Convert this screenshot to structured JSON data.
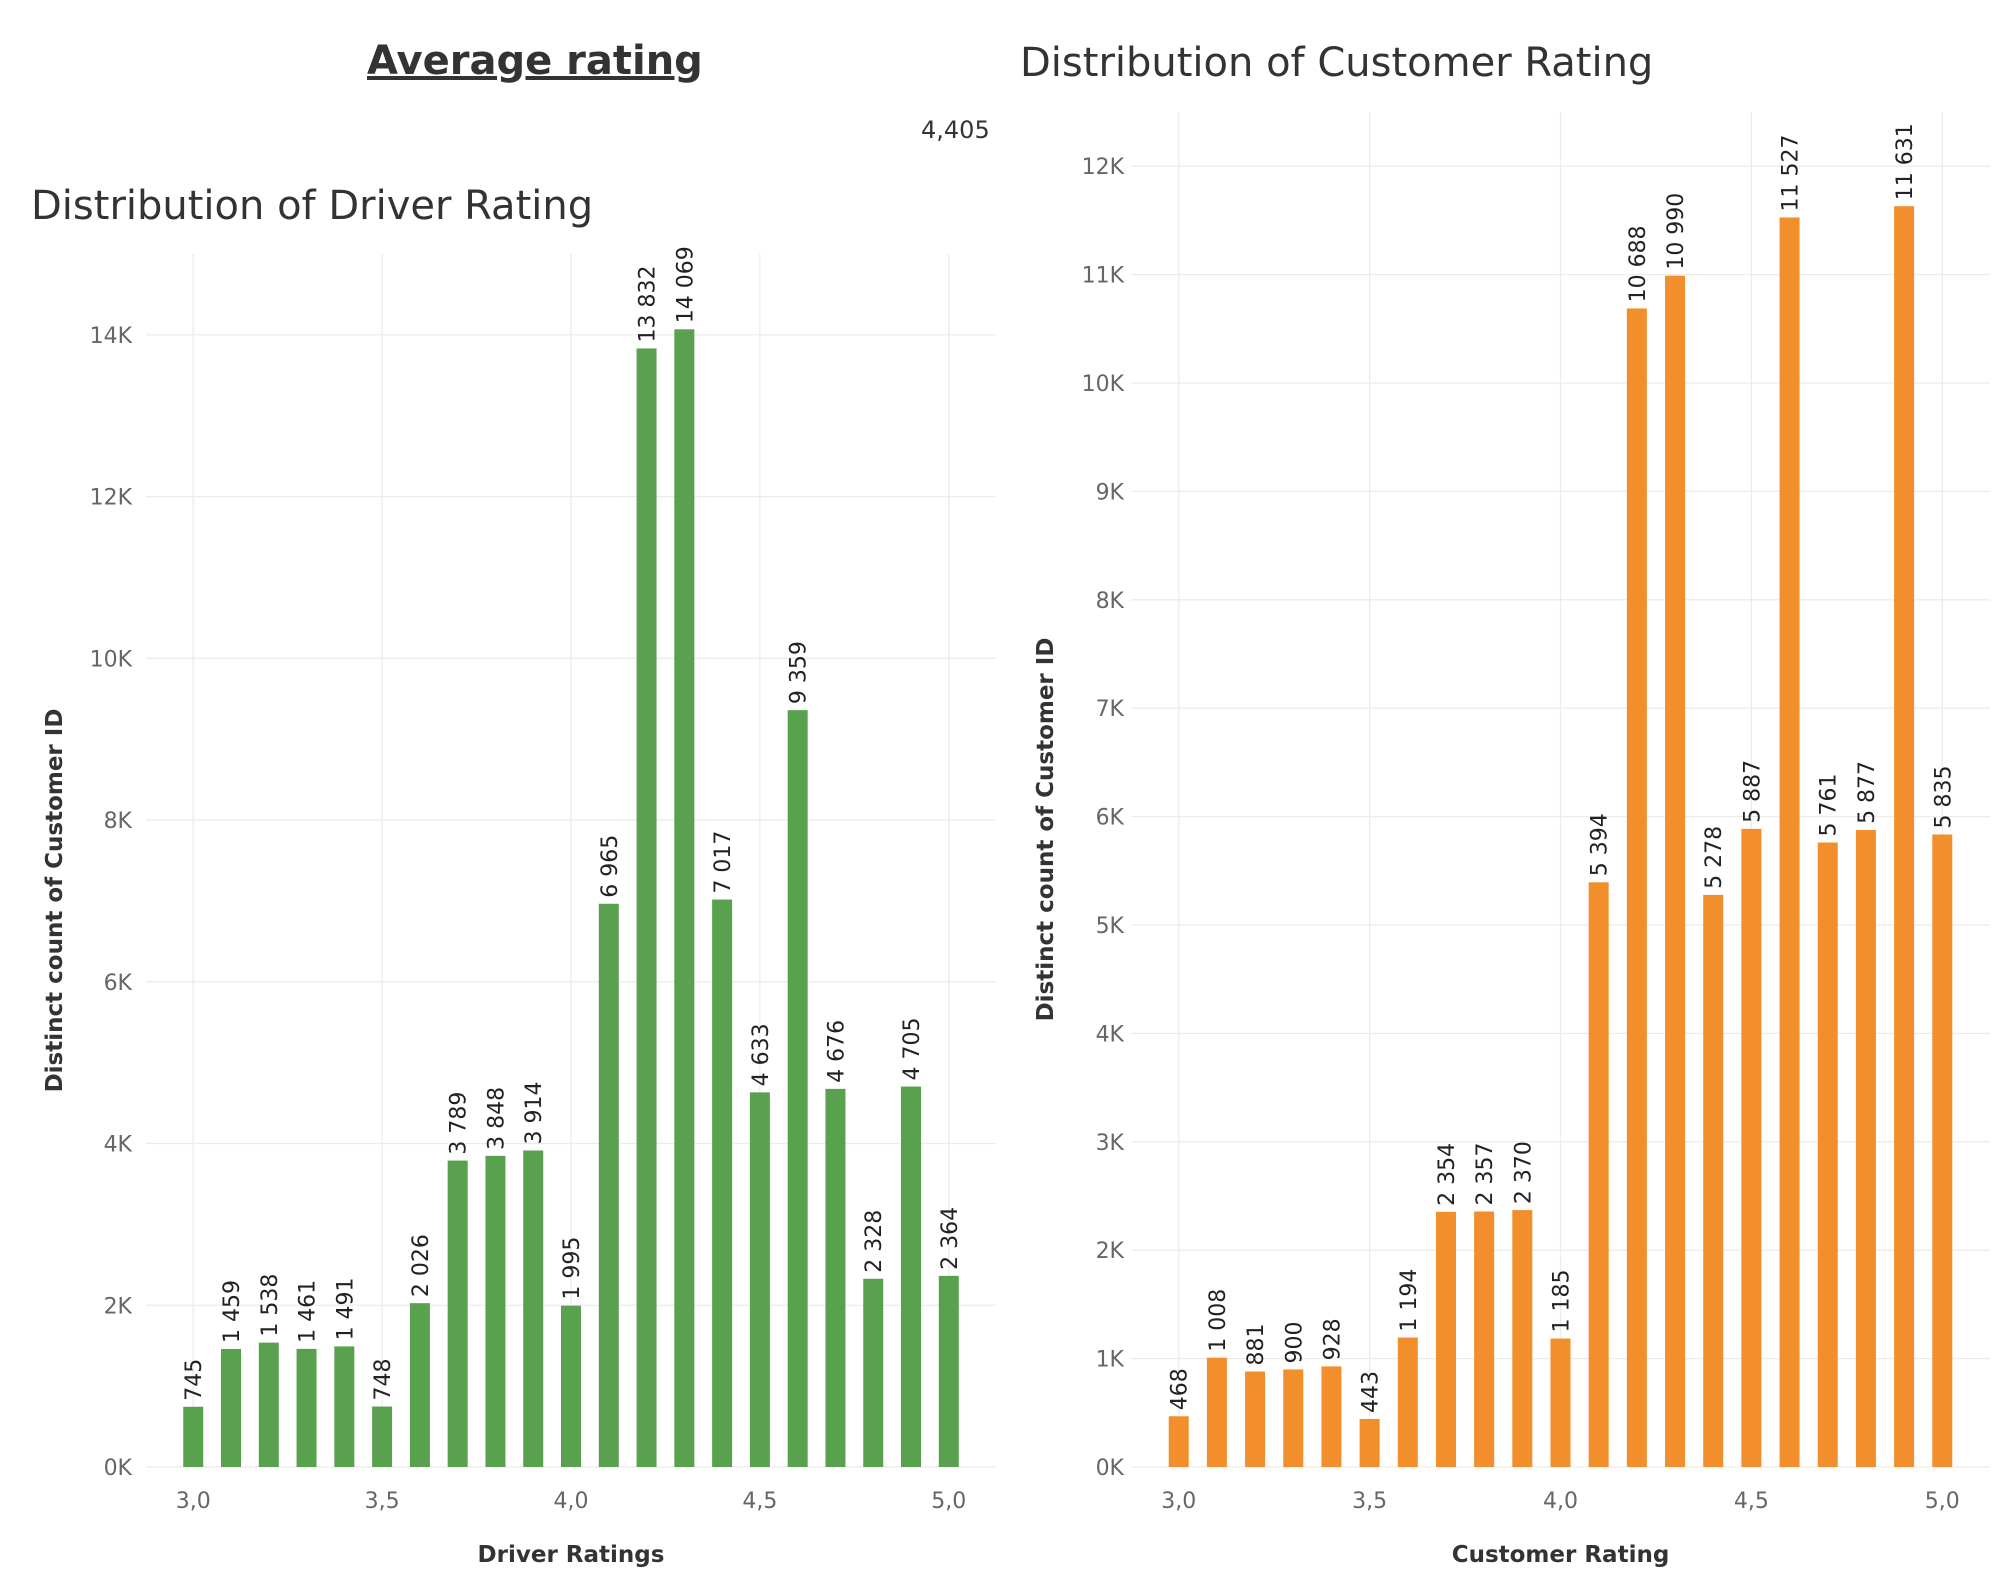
{
  "dashboard": {
    "title": "Average rating",
    "average_value": "4,405"
  },
  "chart_data": [
    {
      "type": "bar",
      "title": "Distribution of Driver Rating",
      "xlabel": "Driver Ratings",
      "ylabel": "Distinct count of Customer ID",
      "x": [
        3.0,
        3.1,
        3.2,
        3.3,
        3.4,
        3.5,
        3.6,
        3.7,
        3.8,
        3.9,
        4.0,
        4.1,
        4.2,
        4.3,
        4.4,
        4.5,
        4.6,
        4.7,
        4.8,
        4.9,
        5.0
      ],
      "values": [
        745,
        1459,
        1538,
        1461,
        1491,
        748,
        2026,
        3789,
        3848,
        3914,
        1995,
        6965,
        13832,
        14069,
        7017,
        4633,
        9359,
        4676,
        2328,
        4705,
        2364
      ],
      "value_labels": [
        "745",
        "1 459",
        "1 538",
        "1 461",
        "1 491",
        "748",
        "2 026",
        "3 789",
        "3 848",
        "3 914",
        "1 995",
        "6 965",
        "13 832",
        "14 069",
        "7 017",
        "4 633",
        "9 359",
        "4 676",
        "2 328",
        "4 705",
        "2 364"
      ],
      "xticks": [
        3.0,
        3.5,
        4.0,
        4.5,
        5.0
      ],
      "xtick_labels": [
        "3,0",
        "3,5",
        "4,0",
        "4,5",
        "5,0"
      ],
      "yticks": [
        0,
        2000,
        4000,
        6000,
        8000,
        10000,
        12000,
        14000
      ],
      "ytick_labels": [
        "0K",
        "2K",
        "4K",
        "6K",
        "8K",
        "10K",
        "12K",
        "14K"
      ],
      "xlim": [
        2.875,
        5.125
      ],
      "ylim": [
        0,
        15000
      ],
      "color": "#59a14f",
      "grid": true,
      "legend": "none"
    },
    {
      "type": "bar",
      "title": "Distribution of Customer Rating",
      "xlabel": "Customer Rating",
      "ylabel": "Distinct count of Customer ID",
      "x": [
        3.0,
        3.1,
        3.2,
        3.3,
        3.4,
        3.5,
        3.6,
        3.7,
        3.8,
        3.9,
        4.0,
        4.1,
        4.2,
        4.3,
        4.4,
        4.5,
        4.6,
        4.7,
        4.8,
        4.9,
        5.0
      ],
      "values": [
        468,
        1008,
        881,
        900,
        928,
        443,
        1194,
        2354,
        2357,
        2370,
        1185,
        5394,
        10688,
        10990,
        5278,
        5887,
        11527,
        5761,
        5877,
        11631,
        5835
      ],
      "value_labels": [
        "468",
        "1 008",
        "881",
        "900",
        "928",
        "443",
        "1 194",
        "2 354",
        "2 357",
        "2 370",
        "1 185",
        "5 394",
        "10 688",
        "10 990",
        "5 278",
        "5 887",
        "11 527",
        "5 761",
        "5 877",
        "11 631",
        "5 835"
      ],
      "xticks": [
        3.0,
        3.5,
        4.0,
        4.5,
        5.0
      ],
      "xtick_labels": [
        "3,0",
        "3,5",
        "4,0",
        "4,5",
        "5,0"
      ],
      "yticks": [
        0,
        1000,
        2000,
        3000,
        4000,
        5000,
        6000,
        7000,
        8000,
        9000,
        10000,
        11000,
        12000
      ],
      "ytick_labels": [
        "0K",
        "1K",
        "2K",
        "3K",
        "4K",
        "5K",
        "6K",
        "7K",
        "8K",
        "9K",
        "10K",
        "11K",
        "12K"
      ],
      "xlim": [
        2.875,
        5.125
      ],
      "ylim": [
        0,
        12500
      ],
      "color": "#f28e2b",
      "grid": true,
      "legend": "none"
    }
  ]
}
